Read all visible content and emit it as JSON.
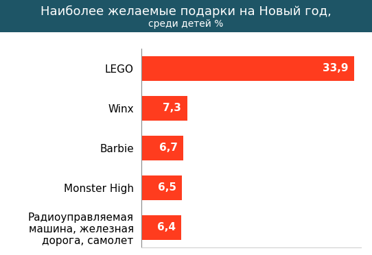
{
  "chart_data": {
    "type": "bar",
    "orientation": "horizontal",
    "title": "Наиболее желаемые подарки на Новый год,",
    "subtitle": "среди детей %",
    "categories": [
      "LEGO",
      "Winx",
      "Barbie",
      "Monster High",
      "Радиоуправляемая\nмашина, железная\nдорога, самолет"
    ],
    "values": [
      33.9,
      7.3,
      6.7,
      6.5,
      6.4
    ],
    "value_labels": [
      "33,9",
      "7,3",
      "6,7",
      "6,5",
      "6,4"
    ],
    "color": "#ff3c1e",
    "xlim": [
      0,
      35
    ],
    "data_labels": true,
    "tick_labels": "y",
    "grid": false
  }
}
